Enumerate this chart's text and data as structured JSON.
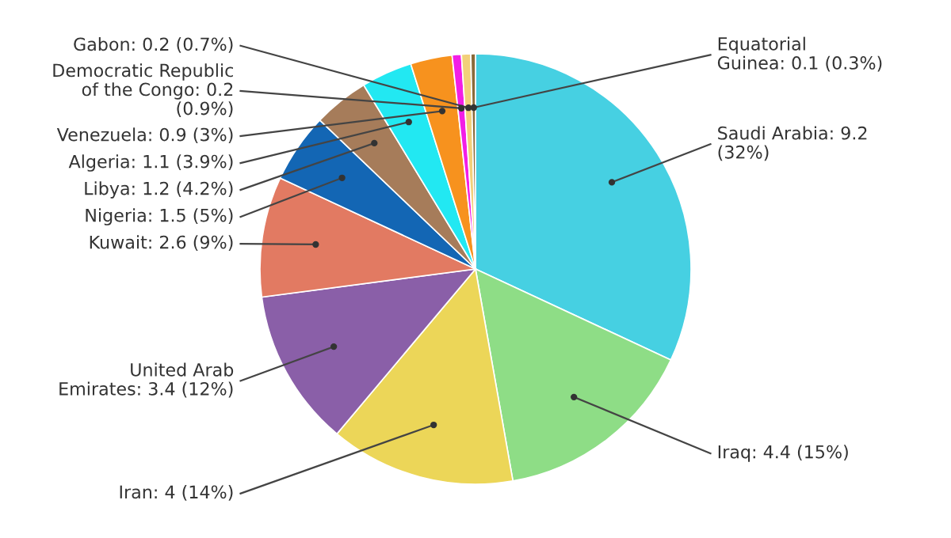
{
  "chart_data": {
    "type": "pie",
    "categories": [
      "Saudi Arabia",
      "Iraq",
      "Iran",
      "United Arab Emirates",
      "Kuwait",
      "Nigeria",
      "Libya",
      "Algeria",
      "Venezuela",
      "Democratic Republic of the Congo",
      "Gabon",
      "Equatorial Guinea"
    ],
    "values": [
      9.2,
      4.4,
      4,
      3.4,
      2.6,
      1.5,
      1.2,
      1.1,
      0.9,
      0.2,
      0.2,
      0.1
    ],
    "value_labels": [
      "9.2 (32%)",
      "4.4 (15%)",
      "4 (14%)",
      "3.4 (12%)",
      "2.6 (9%)",
      "1.5 (5%)",
      "1.2 (4.2%)",
      "1.1 (3.9%)",
      "0.9 (3%)",
      "0.2 (0.9%)",
      "0.2 (0.7%)",
      "0.1 (0.3%)"
    ],
    "colors": [
      "#46d0e2",
      "#8edd86",
      "#ecd658",
      "#8a5fa8",
      "#e27a62",
      "#1366b4",
      "#a67c5a",
      "#22e8f2",
      "#f7921e",
      "#f21ee6",
      "#f2d07a",
      "#8a6a3a"
    ]
  }
}
